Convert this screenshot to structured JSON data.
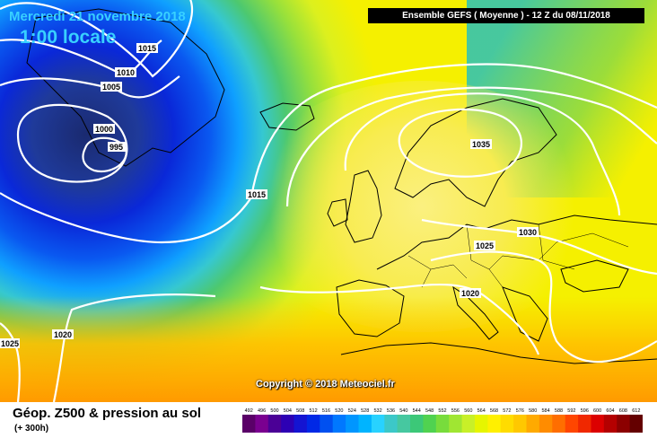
{
  "header": {
    "date": "Mercredi 21 novembre 2018",
    "time": "1:00 locale",
    "run": "Ensemble GEFS  ( Moyenne )  -  12 Z du 08/11/2018"
  },
  "copyright": "Copyright © 2018 Meteociel.fr",
  "footer": {
    "title": "Géop. Z500 & pression au sol",
    "subtitle": "(+ 300h)"
  },
  "isobar_labels": [
    "1015",
    "1010",
    "1005",
    "1000",
    "995",
    "1015",
    "1035",
    "1030",
    "1025",
    "1020",
    "1020",
    "1025"
  ],
  "legend": {
    "values": [
      "492",
      "496",
      "500",
      "504",
      "508",
      "512",
      "516",
      "520",
      "524",
      "528",
      "532",
      "536",
      "540",
      "544",
      "548",
      "552",
      "556",
      "560",
      "564",
      "568",
      "572",
      "576",
      "580",
      "584",
      "588",
      "592",
      "596",
      "600",
      "604",
      "608",
      "612"
    ],
    "colors": [
      "#5a0068",
      "#7a0090",
      "#4b0096",
      "#2d00b4",
      "#1414d2",
      "#0028e6",
      "#0050f0",
      "#0078ff",
      "#0096ff",
      "#00b4ff",
      "#28d2ff",
      "#3cc8c8",
      "#46c8a0",
      "#3cc878",
      "#50d250",
      "#78dc3c",
      "#a0e632",
      "#c8f028",
      "#e6f500",
      "#fff000",
      "#ffdc00",
      "#ffc800",
      "#ffaa00",
      "#ff8c00",
      "#ff6e00",
      "#ff4600",
      "#f02800",
      "#dc0000",
      "#b40000",
      "#8c0000",
      "#640000"
    ]
  }
}
